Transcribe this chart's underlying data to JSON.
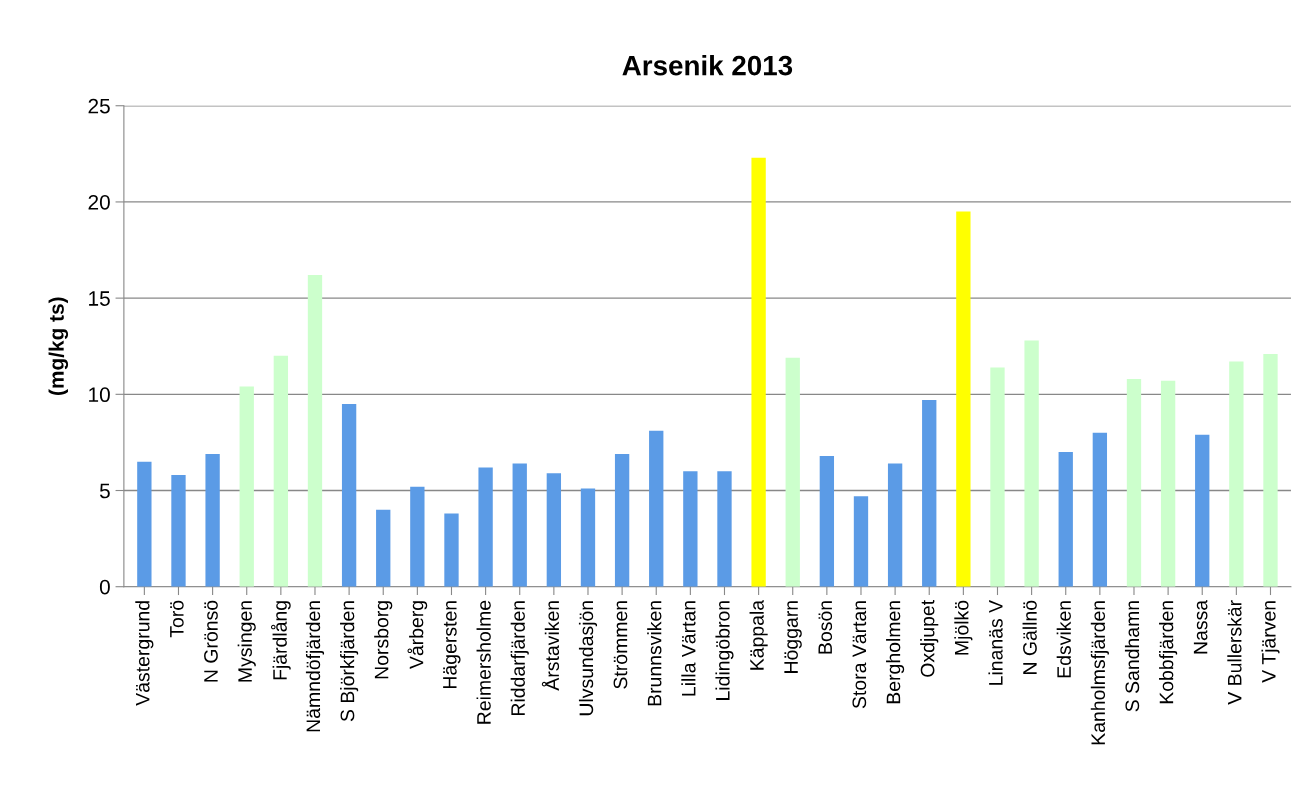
{
  "chart_data": {
    "type": "bar",
    "title": "Arsenik 2013",
    "ylabel": "(mg/kg ts)",
    "categories": [
      "Västergrund",
      "Torö",
      "N Grönsö",
      "Mysingen",
      "Fjärdlång",
      "Nämndöfjärden",
      "S Björkfjärden",
      "Norsborg",
      "Vårberg",
      "Hägersten",
      "Reimersholme",
      "Riddarfjärden",
      "Årstaviken",
      "Ulvsundasjön",
      "Strömmen",
      "Brunnsviken",
      "Lilla Värtan",
      "Lidingöbron",
      "Käppala",
      "Höggarn",
      "Bosön",
      "Stora Värtan",
      "Bergholmen",
      "Oxdjupet",
      "Mjölkö",
      "Linanäs V",
      "N Gällnö",
      "Edsviken",
      "Kanholmsfjärden",
      "S Sandhamn",
      "Kobbfjärden",
      "Nassa",
      "V Bullerskär",
      "V Tjärven"
    ],
    "values": [
      6.5,
      5.8,
      6.9,
      10.4,
      12.0,
      16.2,
      9.5,
      4.0,
      5.2,
      3.8,
      6.2,
      6.4,
      5.9,
      5.1,
      6.9,
      8.1,
      6.0,
      6.0,
      22.3,
      11.9,
      6.8,
      4.7,
      6.4,
      9.7,
      19.5,
      11.4,
      12.8,
      7.0,
      8.0,
      10.8,
      10.7,
      7.9,
      11.7,
      12.1
    ],
    "colors": [
      "#5b9be6",
      "#5b9be6",
      "#5b9be6",
      "#ccffcc",
      "#ccffcc",
      "#ccffcc",
      "#5b9be6",
      "#5b9be6",
      "#5b9be6",
      "#5b9be6",
      "#5b9be6",
      "#5b9be6",
      "#5b9be6",
      "#5b9be6",
      "#5b9be6",
      "#5b9be6",
      "#5b9be6",
      "#5b9be6",
      "#ffff00",
      "#ccffcc",
      "#5b9be6",
      "#5b9be6",
      "#5b9be6",
      "#5b9be6",
      "#ffff00",
      "#ccffcc",
      "#ccffcc",
      "#5b9be6",
      "#5b9be6",
      "#ccffcc",
      "#ccffcc",
      "#5b9be6",
      "#ccffcc",
      "#ccffcc"
    ],
    "ylim": [
      0,
      25
    ],
    "yticks": [
      0,
      5,
      10,
      15,
      20,
      25
    ],
    "grid": "y",
    "legend": false
  }
}
